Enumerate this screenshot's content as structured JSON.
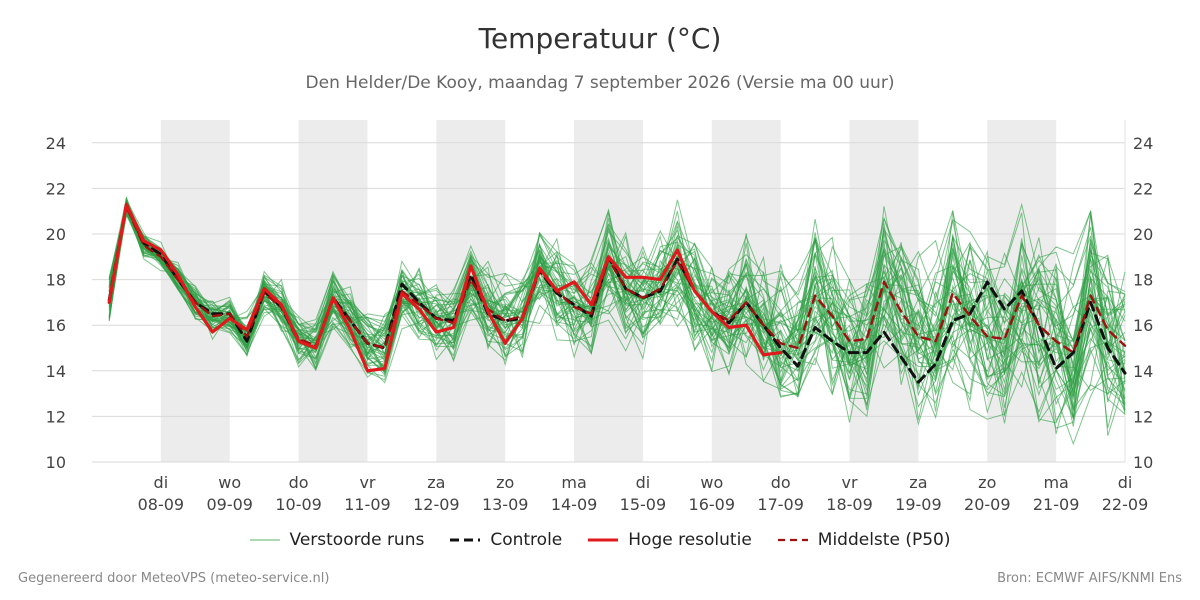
{
  "chart_data": {
    "type": "line",
    "title": "Temperatuur (°C)",
    "subtitle": "Den Helder/De Kooy, maandag  7 september 2026 (Versie ma 00 uur)",
    "ylim": [
      10,
      25
    ],
    "yticks": [
      10,
      12,
      14,
      16,
      18,
      20,
      22,
      24
    ],
    "x_start": "2026-09-07 00:00",
    "x_end": "2026-09-22 00:00",
    "xticks": [
      {
        "date": "2026-09-08",
        "day": "di",
        "label": "08-09"
      },
      {
        "date": "2026-09-09",
        "day": "wo",
        "label": "09-09"
      },
      {
        "date": "2026-09-10",
        "day": "do",
        "label": "10-09"
      },
      {
        "date": "2026-09-11",
        "day": "vr",
        "label": "11-09"
      },
      {
        "date": "2026-09-12",
        "day": "za",
        "label": "12-09"
      },
      {
        "date": "2026-09-13",
        "day": "zo",
        "label": "13-09"
      },
      {
        "date": "2026-09-14",
        "day": "ma",
        "label": "14-09"
      },
      {
        "date": "2026-09-15",
        "day": "di",
        "label": "15-09"
      },
      {
        "date": "2026-09-16",
        "day": "wo",
        "label": "16-09"
      },
      {
        "date": "2026-09-17",
        "day": "do",
        "label": "17-09"
      },
      {
        "date": "2026-09-18",
        "day": "vr",
        "label": "18-09"
      },
      {
        "date": "2026-09-19",
        "day": "za",
        "label": "19-09"
      },
      {
        "date": "2026-09-20",
        "day": "zo",
        "label": "20-09"
      },
      {
        "date": "2026-09-21",
        "day": "ma",
        "label": "21-09"
      },
      {
        "date": "2026-09-22",
        "day": "di",
        "label": "22-09"
      }
    ],
    "shaded_periods": [
      [
        "2026-09-08",
        "2026-09-09"
      ],
      [
        "2026-09-10",
        "2026-09-11"
      ],
      [
        "2026-09-12",
        "2026-09-13"
      ],
      [
        "2026-09-14",
        "2026-09-15"
      ],
      [
        "2026-09-16",
        "2026-09-17"
      ],
      [
        "2026-09-18",
        "2026-09-19"
      ],
      [
        "2026-09-20",
        "2026-09-21"
      ]
    ],
    "grid": true,
    "legend_position": "bottom",
    "series": [
      {
        "name": "Controle",
        "color": "#111111",
        "style": "dashed",
        "points": [
          [
            "2026-09-07 06:00",
            17.1
          ],
          [
            "2026-09-07 12:00",
            21.3
          ],
          [
            "2026-09-07 18:00",
            19.6
          ],
          [
            "2026-09-08 00:00",
            19.1
          ],
          [
            "2026-09-08 06:00",
            18.0
          ],
          [
            "2026-09-08 12:00",
            17.0
          ],
          [
            "2026-09-08 18:00",
            16.5
          ],
          [
            "2026-09-09 00:00",
            16.5
          ],
          [
            "2026-09-09 06:00",
            15.3
          ],
          [
            "2026-09-09 12:00",
            17.5
          ],
          [
            "2026-09-09 18:00",
            16.8
          ],
          [
            "2026-09-10 00:00",
            15.3
          ],
          [
            "2026-09-10 06:00",
            15.0
          ],
          [
            "2026-09-10 12:00",
            17.2
          ],
          [
            "2026-09-10 18:00",
            16.2
          ],
          [
            "2026-09-11 00:00",
            15.2
          ],
          [
            "2026-09-11 06:00",
            15.0
          ],
          [
            "2026-09-11 12:00",
            17.8
          ],
          [
            "2026-09-11 18:00",
            17.0
          ],
          [
            "2026-09-12 00:00",
            16.3
          ],
          [
            "2026-09-12 06:00",
            16.2
          ],
          [
            "2026-09-12 12:00",
            18.2
          ],
          [
            "2026-09-12 18:00",
            16.5
          ],
          [
            "2026-09-13 00:00",
            16.2
          ],
          [
            "2026-09-13 06:00",
            16.3
          ],
          [
            "2026-09-13 12:00",
            18.4
          ],
          [
            "2026-09-13 18:00",
            17.4
          ],
          [
            "2026-09-14 00:00",
            16.9
          ],
          [
            "2026-09-14 06:00",
            16.4
          ],
          [
            "2026-09-14 12:00",
            19.0
          ],
          [
            "2026-09-14 18:00",
            17.6
          ],
          [
            "2026-09-15 00:00",
            17.2
          ],
          [
            "2026-09-15 06:00",
            17.5
          ],
          [
            "2026-09-15 12:00",
            18.9
          ],
          [
            "2026-09-15 18:00",
            17.5
          ],
          [
            "2026-09-16 00:00",
            16.6
          ],
          [
            "2026-09-16 06:00",
            16.1
          ],
          [
            "2026-09-16 12:00",
            17.0
          ],
          [
            "2026-09-16 18:00",
            16.0
          ],
          [
            "2026-09-17 00:00",
            15.0
          ],
          [
            "2026-09-17 06:00",
            14.2
          ],
          [
            "2026-09-17 12:00",
            15.9
          ],
          [
            "2026-09-17 18:00",
            15.3
          ],
          [
            "2026-09-18 00:00",
            14.8
          ],
          [
            "2026-09-18 06:00",
            14.8
          ],
          [
            "2026-09-18 12:00",
            15.7
          ],
          [
            "2026-09-18 18:00",
            14.6
          ],
          [
            "2026-09-19 00:00",
            13.5
          ],
          [
            "2026-09-19 06:00",
            14.3
          ],
          [
            "2026-09-19 12:00",
            16.2
          ],
          [
            "2026-09-19 18:00",
            16.5
          ],
          [
            "2026-09-20 00:00",
            17.9
          ],
          [
            "2026-09-20 06:00",
            16.7
          ],
          [
            "2026-09-20 12:00",
            17.5
          ],
          [
            "2026-09-20 18:00",
            16.0
          ],
          [
            "2026-09-21 00:00",
            14.1
          ],
          [
            "2026-09-21 06:00",
            14.8
          ],
          [
            "2026-09-21 12:00",
            17.0
          ],
          [
            "2026-09-21 18:00",
            15.0
          ],
          [
            "2026-09-22 00:00",
            13.9
          ]
        ]
      },
      {
        "name": "Hoge resolutie",
        "color": "#e0191c",
        "style": "solid",
        "points": [
          [
            "2026-09-07 06:00",
            17.0
          ],
          [
            "2026-09-07 12:00",
            21.3
          ],
          [
            "2026-09-07 18:00",
            19.7
          ],
          [
            "2026-09-08 00:00",
            19.3
          ],
          [
            "2026-09-08 06:00",
            18.2
          ],
          [
            "2026-09-08 12:00",
            16.8
          ],
          [
            "2026-09-08 18:00",
            15.7
          ],
          [
            "2026-09-09 00:00",
            16.3
          ],
          [
            "2026-09-09 06:00",
            15.8
          ],
          [
            "2026-09-09 12:00",
            17.6
          ],
          [
            "2026-09-09 18:00",
            16.9
          ],
          [
            "2026-09-10 00:00",
            15.3
          ],
          [
            "2026-09-10 06:00",
            15.0
          ],
          [
            "2026-09-10 12:00",
            17.2
          ],
          [
            "2026-09-10 18:00",
            15.8
          ],
          [
            "2026-09-11 00:00",
            14.0
          ],
          [
            "2026-09-11 06:00",
            14.1
          ],
          [
            "2026-09-11 12:00",
            17.4
          ],
          [
            "2026-09-11 18:00",
            16.7
          ],
          [
            "2026-09-12 00:00",
            15.7
          ],
          [
            "2026-09-12 06:00",
            15.9
          ],
          [
            "2026-09-12 12:00",
            18.6
          ],
          [
            "2026-09-12 18:00",
            16.6
          ],
          [
            "2026-09-13 00:00",
            15.2
          ],
          [
            "2026-09-13 06:00",
            16.3
          ],
          [
            "2026-09-13 12:00",
            18.5
          ],
          [
            "2026-09-13 18:00",
            17.5
          ],
          [
            "2026-09-14 00:00",
            17.9
          ],
          [
            "2026-09-14 06:00",
            16.9
          ],
          [
            "2026-09-14 12:00",
            19.0
          ],
          [
            "2026-09-14 18:00",
            18.1
          ],
          [
            "2026-09-15 00:00",
            18.1
          ],
          [
            "2026-09-15 06:00",
            18.0
          ],
          [
            "2026-09-15 12:00",
            19.3
          ],
          [
            "2026-09-15 18:00",
            17.5
          ],
          [
            "2026-09-16 00:00",
            16.6
          ],
          [
            "2026-09-16 06:00",
            15.9
          ],
          [
            "2026-09-16 12:00",
            16.0
          ],
          [
            "2026-09-16 18:00",
            14.7
          ],
          [
            "2026-09-17 00:00",
            14.8
          ]
        ]
      },
      {
        "name": "Middelste (P50)",
        "color": "#a01010",
        "style": "dashed",
        "points": [
          [
            "2026-09-07 06:00",
            17.1
          ],
          [
            "2026-09-07 12:00",
            21.2
          ],
          [
            "2026-09-07 18:00",
            19.5
          ],
          [
            "2026-09-08 00:00",
            19.0
          ],
          [
            "2026-09-08 06:00",
            18.0
          ],
          [
            "2026-09-08 12:00",
            17.0
          ],
          [
            "2026-09-08 18:00",
            16.4
          ],
          [
            "2026-09-09 00:00",
            16.5
          ],
          [
            "2026-09-09 06:00",
            15.5
          ],
          [
            "2026-09-09 12:00",
            17.4
          ],
          [
            "2026-09-09 18:00",
            16.8
          ],
          [
            "2026-09-10 00:00",
            15.4
          ],
          [
            "2026-09-10 06:00",
            15.1
          ],
          [
            "2026-09-10 12:00",
            17.1
          ],
          [
            "2026-09-10 18:00",
            16.2
          ],
          [
            "2026-09-11 00:00",
            15.2
          ],
          [
            "2026-09-11 06:00",
            15.0
          ],
          [
            "2026-09-11 12:00",
            17.5
          ],
          [
            "2026-09-11 18:00",
            16.9
          ],
          [
            "2026-09-12 00:00",
            16.3
          ],
          [
            "2026-09-12 06:00",
            16.1
          ],
          [
            "2026-09-12 12:00",
            18.0
          ],
          [
            "2026-09-12 18:00",
            16.7
          ],
          [
            "2026-09-13 00:00",
            16.2
          ],
          [
            "2026-09-13 06:00",
            16.4
          ],
          [
            "2026-09-13 12:00",
            18.4
          ],
          [
            "2026-09-13 18:00",
            17.5
          ],
          [
            "2026-09-14 00:00",
            16.8
          ],
          [
            "2026-09-14 06:00",
            16.5
          ],
          [
            "2026-09-14 12:00",
            18.9
          ],
          [
            "2026-09-14 18:00",
            17.6
          ],
          [
            "2026-09-15 00:00",
            17.2
          ],
          [
            "2026-09-15 06:00",
            17.6
          ],
          [
            "2026-09-15 12:00",
            18.8
          ],
          [
            "2026-09-15 18:00",
            17.5
          ],
          [
            "2026-09-16 00:00",
            16.6
          ],
          [
            "2026-09-16 06:00",
            16.2
          ],
          [
            "2026-09-16 12:00",
            17.0
          ],
          [
            "2026-09-16 18:00",
            16.0
          ],
          [
            "2026-09-17 00:00",
            15.2
          ],
          [
            "2026-09-17 06:00",
            15.0
          ],
          [
            "2026-09-17 12:00",
            17.3
          ],
          [
            "2026-09-17 18:00",
            16.4
          ],
          [
            "2026-09-18 00:00",
            15.3
          ],
          [
            "2026-09-18 06:00",
            15.4
          ],
          [
            "2026-09-18 12:00",
            17.9
          ],
          [
            "2026-09-18 18:00",
            16.6
          ],
          [
            "2026-09-19 00:00",
            15.5
          ],
          [
            "2026-09-19 06:00",
            15.3
          ],
          [
            "2026-09-19 12:00",
            17.4
          ],
          [
            "2026-09-19 18:00",
            16.4
          ],
          [
            "2026-09-20 00:00",
            15.5
          ],
          [
            "2026-09-20 06:00",
            15.4
          ],
          [
            "2026-09-20 12:00",
            17.3
          ],
          [
            "2026-09-20 18:00",
            16.0
          ],
          [
            "2026-09-21 00:00",
            15.3
          ],
          [
            "2026-09-21 06:00",
            14.8
          ],
          [
            "2026-09-21 12:00",
            17.3
          ],
          [
            "2026-09-21 18:00",
            15.8
          ],
          [
            "2026-09-22 00:00",
            15.1
          ]
        ]
      }
    ],
    "ensemble": {
      "name": "Verstoorde runs",
      "color": "#2e9e44",
      "members": 50
    }
  },
  "legend": {
    "ensemble_label": "Verstoorde runs",
    "control_label": "Controle",
    "hires_label": "Hoge resolutie",
    "median_label": "Middelste (P50)"
  },
  "footer": {
    "left": "Gegenereerd door MeteoVPS (meteo-service.nl)",
    "right": "Bron: ECMWF AIFS/KNMI Ens"
  }
}
